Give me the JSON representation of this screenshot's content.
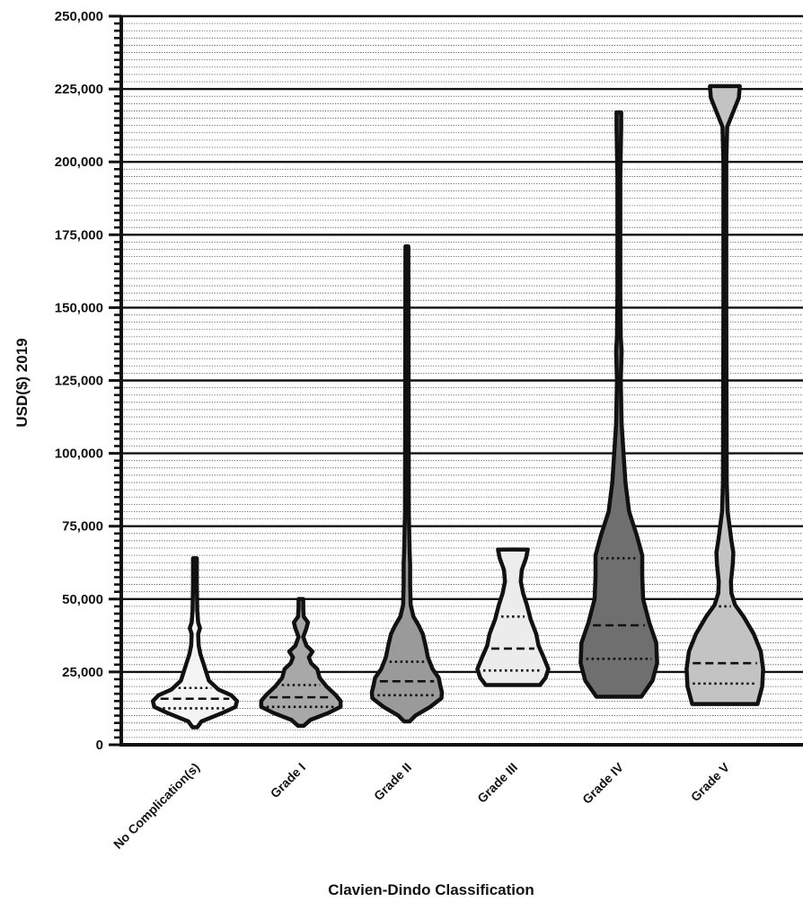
{
  "chart_data": {
    "type": "violin",
    "xlabel": "Clavien-Dindo Classification",
    "ylabel": "USD($) 2019",
    "ylim": [
      0,
      250000
    ],
    "major_ticks": [
      0,
      25000,
      50000,
      75000,
      100000,
      125000,
      150000,
      175000,
      200000,
      225000,
      250000
    ],
    "tick_labels": [
      "0",
      "25,000",
      "50,000",
      "75,000",
      "100,000",
      "125,000",
      "150,000",
      "175,000",
      "200,000",
      "225,000",
      "250,000"
    ],
    "minor_tick_step": 2500,
    "grid": "major solid, minor dotted",
    "categories": [
      "No Complication(s)",
      "Grade I",
      "Grade II",
      "Grade III",
      "Grade IV",
      "Grade V"
    ],
    "series": [
      {
        "label": "No Complication(s)",
        "color": "#f4f4f4",
        "min": 6000,
        "max": 64000,
        "q1": 12500,
        "median": 15800,
        "q3": 19500,
        "profile": [
          [
            6000,
            0.05
          ],
          [
            8000,
            0.14
          ],
          [
            11000,
            0.6
          ],
          [
            13000,
            0.87
          ],
          [
            15000,
            0.9
          ],
          [
            17000,
            0.78
          ],
          [
            19000,
            0.5
          ],
          [
            22000,
            0.3
          ],
          [
            25000,
            0.24
          ],
          [
            28000,
            0.18
          ],
          [
            31000,
            0.12
          ],
          [
            34000,
            0.08
          ],
          [
            38000,
            0.07
          ],
          [
            40000,
            0.11
          ],
          [
            42000,
            0.07
          ],
          [
            46000,
            0.05
          ],
          [
            55000,
            0.04
          ],
          [
            64000,
            0.04
          ]
        ]
      },
      {
        "label": "Grade I",
        "color": "#a8a8a8",
        "min": 6500,
        "max": 50000,
        "q1": 13000,
        "median": 16300,
        "q3": 20500,
        "profile": [
          [
            6500,
            0.06
          ],
          [
            8500,
            0.2
          ],
          [
            11000,
            0.6
          ],
          [
            13000,
            0.85
          ],
          [
            15000,
            0.85
          ],
          [
            17000,
            0.75
          ],
          [
            20000,
            0.55
          ],
          [
            23000,
            0.4
          ],
          [
            26000,
            0.35
          ],
          [
            28000,
            0.22
          ],
          [
            30000,
            0.17
          ],
          [
            32000,
            0.25
          ],
          [
            34000,
            0.12
          ],
          [
            37000,
            0.05
          ],
          [
            40000,
            0.12
          ],
          [
            42000,
            0.15
          ],
          [
            44000,
            0.06
          ],
          [
            47000,
            0.05
          ],
          [
            50000,
            0.05
          ]
        ]
      },
      {
        "label": "Grade II",
        "color": "#9a9a9a",
        "min": 8000,
        "max": 171000,
        "q1": 17000,
        "median": 21800,
        "q3": 28500,
        "profile": [
          [
            8000,
            0.06
          ],
          [
            10000,
            0.18
          ],
          [
            13000,
            0.5
          ],
          [
            16000,
            0.74
          ],
          [
            18000,
            0.75
          ],
          [
            20000,
            0.72
          ],
          [
            23000,
            0.68
          ],
          [
            26000,
            0.55
          ],
          [
            30000,
            0.45
          ],
          [
            34000,
            0.4
          ],
          [
            38000,
            0.34
          ],
          [
            41000,
            0.25
          ],
          [
            44000,
            0.14
          ],
          [
            48000,
            0.08
          ],
          [
            55000,
            0.07
          ],
          [
            62000,
            0.07
          ],
          [
            66000,
            0.06
          ],
          [
            80000,
            0.04
          ],
          [
            171000,
            0.03
          ]
        ]
      },
      {
        "label": "Grade III",
        "color": "#ececec",
        "min": 20500,
        "max": 67000,
        "q1": 25500,
        "median": 33000,
        "q3": 44000,
        "profile": [
          [
            20500,
            0.58
          ],
          [
            23000,
            0.7
          ],
          [
            26000,
            0.76
          ],
          [
            30000,
            0.66
          ],
          [
            34000,
            0.55
          ],
          [
            38000,
            0.5
          ],
          [
            43000,
            0.38
          ],
          [
            48000,
            0.3
          ],
          [
            52000,
            0.22
          ],
          [
            56000,
            0.17
          ],
          [
            60000,
            0.19
          ],
          [
            64000,
            0.28
          ],
          [
            67000,
            0.32
          ]
        ]
      },
      {
        "label": "Grade IV",
        "color": "#6f6f6f",
        "min": 16500,
        "max": 217000,
        "q1": 29500,
        "median": 41000,
        "q3": 64000,
        "profile": [
          [
            16500,
            0.48
          ],
          [
            22000,
            0.72
          ],
          [
            28000,
            0.82
          ],
          [
            35000,
            0.8
          ],
          [
            42000,
            0.65
          ],
          [
            50000,
            0.52
          ],
          [
            58000,
            0.5
          ],
          [
            65000,
            0.5
          ],
          [
            72000,
            0.38
          ],
          [
            80000,
            0.22
          ],
          [
            90000,
            0.14
          ],
          [
            100000,
            0.1
          ],
          [
            110000,
            0.06
          ],
          [
            125000,
            0.04
          ],
          [
            135000,
            0.06
          ],
          [
            140000,
            0.04
          ],
          [
            155000,
            0.03
          ],
          [
            195000,
            0.03
          ],
          [
            212000,
            0.05
          ],
          [
            217000,
            0.05
          ]
        ]
      },
      {
        "label": "Grade V",
        "color": "#c3c3c3",
        "min": 14000,
        "max": 226000,
        "q1": 21000,
        "median": 28000,
        "q3": 47500,
        "profile": [
          [
            14000,
            0.7
          ],
          [
            20000,
            0.8
          ],
          [
            26000,
            0.82
          ],
          [
            32000,
            0.77
          ],
          [
            38000,
            0.62
          ],
          [
            44000,
            0.4
          ],
          [
            48000,
            0.22
          ],
          [
            52000,
            0.14
          ],
          [
            56000,
            0.13
          ],
          [
            62000,
            0.17
          ],
          [
            66000,
            0.18
          ],
          [
            70000,
            0.14
          ],
          [
            75000,
            0.1
          ],
          [
            80000,
            0.06
          ],
          [
            90000,
            0.04
          ],
          [
            150000,
            0.03
          ],
          [
            200000,
            0.03
          ],
          [
            212000,
            0.05
          ],
          [
            218000,
            0.2
          ],
          [
            222000,
            0.3
          ],
          [
            226000,
            0.32
          ]
        ]
      }
    ]
  }
}
